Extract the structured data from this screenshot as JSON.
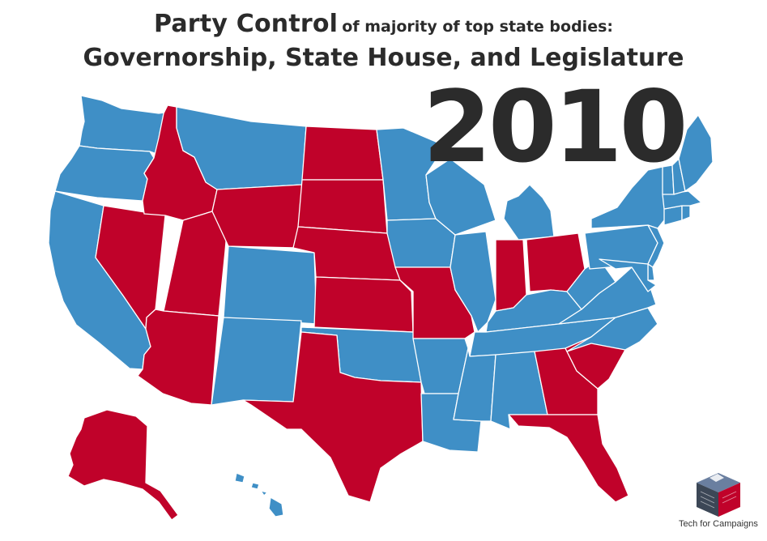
{
  "title": {
    "main": "Party Control",
    "sub": "of majority of top state bodies:",
    "line2": "Governorship, State House, and Legislature"
  },
  "year": "2010",
  "credit": "Tech for Campaigns",
  "colors": {
    "republican": "#c0022a",
    "democratic": "#3f8fc6",
    "border": "#ffffff",
    "text": "#2b2b2b"
  },
  "states": [
    {
      "abbr": "WA",
      "party": "democratic"
    },
    {
      "abbr": "OR",
      "party": "democratic"
    },
    {
      "abbr": "CA",
      "party": "democratic"
    },
    {
      "abbr": "NV",
      "party": "republican"
    },
    {
      "abbr": "ID",
      "party": "republican"
    },
    {
      "abbr": "UT",
      "party": "republican"
    },
    {
      "abbr": "AZ",
      "party": "republican"
    },
    {
      "abbr": "MT",
      "party": "democratic"
    },
    {
      "abbr": "WY",
      "party": "republican"
    },
    {
      "abbr": "CO",
      "party": "democratic"
    },
    {
      "abbr": "NM",
      "party": "democratic"
    },
    {
      "abbr": "ND",
      "party": "republican"
    },
    {
      "abbr": "SD",
      "party": "republican"
    },
    {
      "abbr": "NE",
      "party": "republican"
    },
    {
      "abbr": "KS",
      "party": "republican"
    },
    {
      "abbr": "OK",
      "party": "democratic"
    },
    {
      "abbr": "TX",
      "party": "republican"
    },
    {
      "abbr": "MN",
      "party": "democratic"
    },
    {
      "abbr": "IA",
      "party": "democratic"
    },
    {
      "abbr": "MO",
      "party": "republican"
    },
    {
      "abbr": "AR",
      "party": "democratic"
    },
    {
      "abbr": "LA",
      "party": "democratic"
    },
    {
      "abbr": "WI",
      "party": "democratic"
    },
    {
      "abbr": "IL",
      "party": "democratic"
    },
    {
      "abbr": "MI",
      "party": "democratic"
    },
    {
      "abbr": "IN",
      "party": "republican"
    },
    {
      "abbr": "OH",
      "party": "republican"
    },
    {
      "abbr": "KY",
      "party": "democratic"
    },
    {
      "abbr": "TN",
      "party": "democratic"
    },
    {
      "abbr": "MS",
      "party": "democratic"
    },
    {
      "abbr": "AL",
      "party": "democratic"
    },
    {
      "abbr": "GA",
      "party": "republican"
    },
    {
      "abbr": "FL",
      "party": "republican"
    },
    {
      "abbr": "SC",
      "party": "republican"
    },
    {
      "abbr": "NC",
      "party": "democratic"
    },
    {
      "abbr": "VA",
      "party": "democratic"
    },
    {
      "abbr": "WV",
      "party": "democratic"
    },
    {
      "abbr": "PA",
      "party": "democratic"
    },
    {
      "abbr": "NY",
      "party": "democratic"
    },
    {
      "abbr": "NJ",
      "party": "democratic"
    },
    {
      "abbr": "DE",
      "party": "democratic"
    },
    {
      "abbr": "MD",
      "party": "democratic"
    },
    {
      "abbr": "CT",
      "party": "democratic"
    },
    {
      "abbr": "RI",
      "party": "democratic"
    },
    {
      "abbr": "MA",
      "party": "democratic"
    },
    {
      "abbr": "VT",
      "party": "democratic"
    },
    {
      "abbr": "NH",
      "party": "democratic"
    },
    {
      "abbr": "ME",
      "party": "democratic"
    },
    {
      "abbr": "AK",
      "party": "republican"
    },
    {
      "abbr": "HI",
      "party": "democratic"
    }
  ]
}
